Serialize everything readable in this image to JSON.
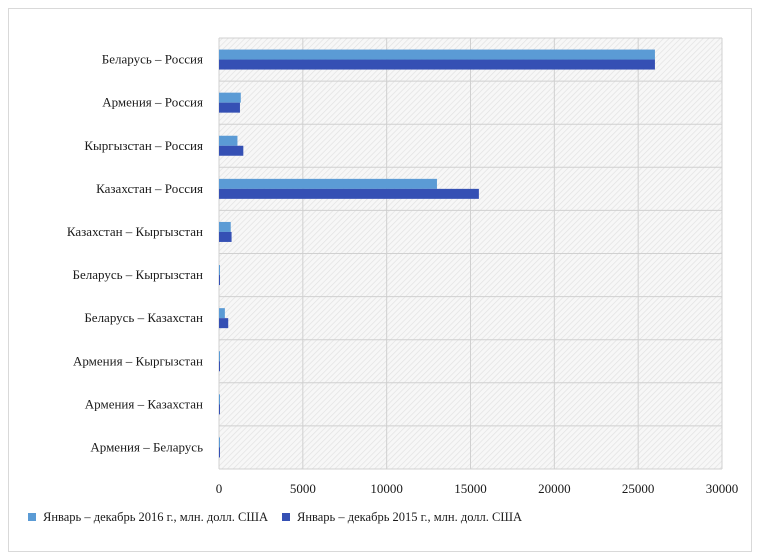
{
  "chart_data": {
    "type": "bar",
    "orientation": "horizontal",
    "categories": [
      "Беларусь – Россия",
      "Армения – Россия",
      "Кыргызстан – Россия",
      "Казахстан – Россия",
      "Казахстан – Кыргызстан",
      "Беларусь – Кыргызстан",
      "Беларусь – Казахстан",
      "Армения – Кыргызстан",
      "Армения – Казахстан",
      "Армения – Беларусь"
    ],
    "series": [
      {
        "name": "Январь – декабрь 2016 г., млн. долл. США",
        "color": "#5b9bd5",
        "values": [
          26000,
          1300,
          1100,
          13000,
          700,
          50,
          350,
          10,
          10,
          10
        ]
      },
      {
        "name": "Январь – декабрь 2015 г., млн. долл. США",
        "color": "#3550b4",
        "values": [
          26000,
          1250,
          1450,
          15500,
          750,
          60,
          550,
          10,
          10,
          10
        ]
      }
    ],
    "xlim": [
      0,
      30000
    ],
    "xticks": [
      "0",
      "5000",
      "10000",
      "15000",
      "20000",
      "25000",
      "30000"
    ],
    "grid": true,
    "legend_position": "bottom"
  }
}
